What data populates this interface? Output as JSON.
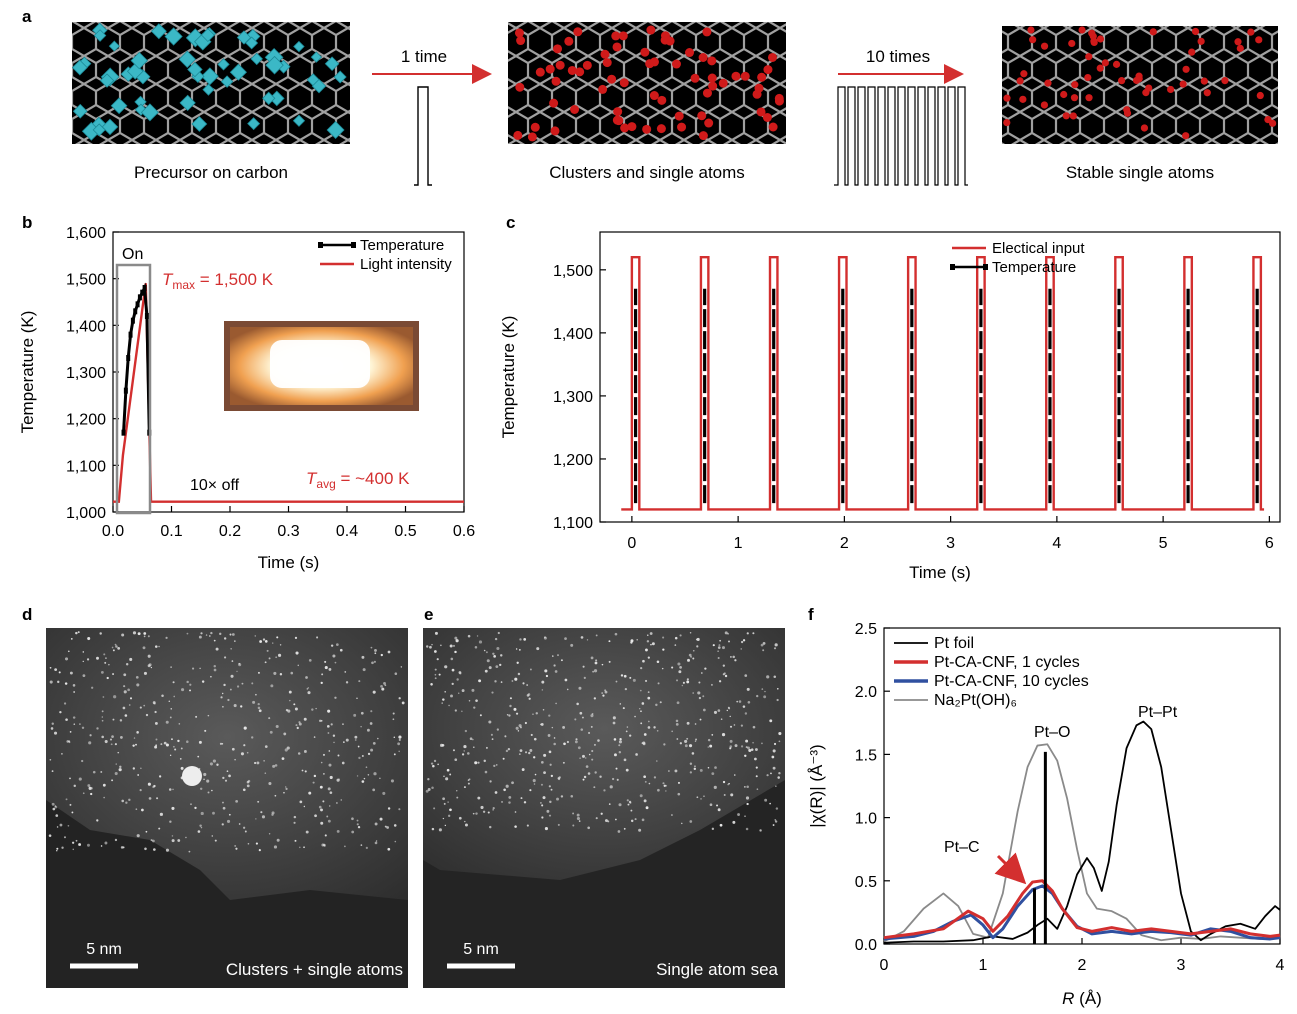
{
  "panel_a": {
    "label": "a",
    "stage1_caption": "Precursor on carbon",
    "stage2_caption": "Clusters and single atoms",
    "stage3_caption": "Stable single atoms",
    "arrow1_label": "1 time",
    "arrow2_label": "10 times",
    "colors": {
      "precursor": "#3bb8c6",
      "atom": "#d01a1a",
      "carbon": "#9a9a9a",
      "tube": "#000000"
    }
  },
  "panel_b": {
    "label": "b",
    "box_label": "On",
    "tmax_label": "T",
    "tmax_sub": "max",
    "tmax_value": " = 1,500 K",
    "tavg_label": "T",
    "tavg_sub": "avg",
    "tavg_value": " = ~400 K",
    "off_label": "10× off",
    "photo_icon": "glowing-heater-photo"
  },
  "panel_c": {
    "label": "c"
  },
  "panel_d": {
    "label": "d",
    "scale": "5 nm",
    "caption": "Clusters + single atoms"
  },
  "panel_e": {
    "label": "e",
    "scale": "5 nm",
    "caption": "Single atom sea"
  },
  "panel_f": {
    "label": "f",
    "ann_ptc": "Pt–C",
    "ann_pto": "Pt–O",
    "ann_ptpt": "Pt–Pt"
  },
  "chart_data": [
    {
      "id": "b",
      "type": "line",
      "xlabel": "Time (s)",
      "ylabel": "Temperature (K)",
      "xlim": [
        0,
        0.6
      ],
      "ylim": [
        1000,
        1600
      ],
      "xticks": [
        "0.0",
        "0.1",
        "0.2",
        "0.3",
        "0.4",
        "0.5",
        "0.6"
      ],
      "yticks": [
        "1,000",
        "1,100",
        "1,200",
        "1,300",
        "1,400",
        "1,500",
        "1,600"
      ],
      "legend": "top-right",
      "series": [
        {
          "name": "Temperature",
          "color": "#000000",
          "x": [
            0.018,
            0.022,
            0.026,
            0.03,
            0.034,
            0.038,
            0.042,
            0.046,
            0.05,
            0.054,
            0.058,
            0.062
          ],
          "y": [
            1170,
            1260,
            1330,
            1380,
            1410,
            1430,
            1445,
            1460,
            1470,
            1480,
            1420,
            1170
          ]
        },
        {
          "name": "Light intensity",
          "color": "#d32f2f",
          "x": [
            0.0,
            0.01,
            0.017,
            0.056,
            0.065,
            0.6
          ],
          "y": [
            1022,
            1022,
            1122,
            1490,
            1022,
            1022
          ]
        }
      ]
    },
    {
      "id": "c",
      "type": "line",
      "xlabel": "Time (s)",
      "ylabel": "Temperature (K)",
      "xlim": [
        -0.3,
        6.1
      ],
      "ylim": [
        1100,
        1560
      ],
      "xticks": [
        "0",
        "1",
        "2",
        "3",
        "4",
        "5",
        "6"
      ],
      "yticks": [
        "1,100",
        "1,200",
        "1,300",
        "1,400",
        "1,500"
      ],
      "legend": "top-right",
      "series": [
        {
          "name": "Electical input",
          "color": "#d32f2f",
          "pulse_starts": [
            0.0,
            0.65,
            1.3,
            1.95,
            2.6,
            3.25,
            3.9,
            4.55,
            5.2,
            5.85
          ],
          "pulse_width": 0.07,
          "low": 1120,
          "high": 1520
        },
        {
          "name": "Temperature",
          "color": "#000000",
          "pulse_starts": [
            0.0,
            0.65,
            1.3,
            1.95,
            2.6,
            3.25,
            3.9,
            4.55,
            5.2,
            5.85
          ],
          "low": 1130,
          "high": 1470
        }
      ]
    },
    {
      "id": "f",
      "type": "line",
      "xlabel": "R (Å)",
      "ylabel": "|χ(R)| (Å⁻³)",
      "xlim": [
        0,
        4
      ],
      "ylim": [
        0,
        2.5
      ],
      "xticks": [
        "0",
        "1",
        "2",
        "3",
        "4"
      ],
      "yticks": [
        "0.0",
        "0.5",
        "1.0",
        "1.5",
        "2.0",
        "2.5"
      ],
      "legend": "top-left",
      "series": [
        {
          "name": "Pt foil",
          "color": "#000000",
          "x": [
            0,
            0.3,
            0.6,
            0.9,
            1.1,
            1.3,
            1.45,
            1.55,
            1.65,
            1.75,
            1.85,
            1.95,
            2.05,
            2.12,
            2.2,
            2.27,
            2.35,
            2.45,
            2.55,
            2.62,
            2.7,
            2.8,
            2.9,
            3.0,
            3.1,
            3.2,
            3.3,
            3.45,
            3.6,
            3.75,
            3.85,
            3.95,
            4.0
          ],
          "y": [
            0.01,
            0.02,
            0.02,
            0.03,
            0.06,
            0.04,
            0.09,
            0.15,
            0.2,
            0.12,
            0.3,
            0.55,
            0.68,
            0.6,
            0.42,
            0.65,
            1.1,
            1.55,
            1.73,
            1.76,
            1.7,
            1.4,
            0.9,
            0.4,
            0.1,
            0.03,
            0.08,
            0.14,
            0.16,
            0.12,
            0.22,
            0.3,
            0.27
          ]
        },
        {
          "name": "Pt-CA-CNF, 1 cycles",
          "color": "#d32f2f",
          "x": [
            0,
            0.3,
            0.6,
            0.85,
            1.0,
            1.1,
            1.25,
            1.4,
            1.5,
            1.6,
            1.7,
            1.8,
            1.95,
            2.1,
            2.3,
            2.5,
            2.7,
            2.9,
            3.1,
            3.3,
            3.5,
            3.7,
            3.9,
            4.0
          ],
          "y": [
            0.05,
            0.08,
            0.12,
            0.26,
            0.2,
            0.1,
            0.22,
            0.4,
            0.49,
            0.5,
            0.42,
            0.28,
            0.13,
            0.1,
            0.13,
            0.1,
            0.12,
            0.1,
            0.08,
            0.1,
            0.12,
            0.08,
            0.06,
            0.07
          ]
        },
        {
          "name": "Pt-CA-CNF, 10 cycles",
          "color": "#3050a0",
          "x": [
            0,
            0.3,
            0.5,
            0.7,
            0.88,
            1.0,
            1.1,
            1.2,
            1.35,
            1.5,
            1.6,
            1.7,
            1.8,
            1.95,
            2.1,
            2.3,
            2.5,
            2.7,
            2.9,
            3.1,
            3.3,
            3.5,
            3.7,
            3.9,
            4.0
          ],
          "y": [
            0.04,
            0.06,
            0.1,
            0.18,
            0.23,
            0.15,
            0.05,
            0.12,
            0.3,
            0.43,
            0.46,
            0.4,
            0.28,
            0.14,
            0.08,
            0.1,
            0.08,
            0.1,
            0.09,
            0.07,
            0.12,
            0.1,
            0.05,
            0.04,
            0.05
          ]
        },
        {
          "name": "Na₂Pt(OH)₆",
          "color": "#8a8a8a",
          "x": [
            0,
            0.2,
            0.4,
            0.6,
            0.75,
            0.9,
            1.05,
            1.2,
            1.35,
            1.45,
            1.55,
            1.65,
            1.75,
            1.85,
            1.95,
            2.05,
            2.15,
            2.3,
            2.45,
            2.6,
            2.8,
            3.0,
            3.2,
            3.4,
            3.6,
            3.8,
            4.0
          ],
          "y": [
            0.02,
            0.1,
            0.28,
            0.4,
            0.3,
            0.08,
            0.05,
            0.4,
            1.05,
            1.4,
            1.57,
            1.58,
            1.45,
            1.15,
            0.75,
            0.4,
            0.28,
            0.26,
            0.2,
            0.07,
            0.03,
            0.05,
            0.04,
            0.06,
            0.05,
            0.04,
            0.05
          ]
        }
      ],
      "vlines": [
        {
          "x": 1.52,
          "y": 0.44
        },
        {
          "x": 1.63,
          "y": 1.52
        }
      ]
    }
  ]
}
